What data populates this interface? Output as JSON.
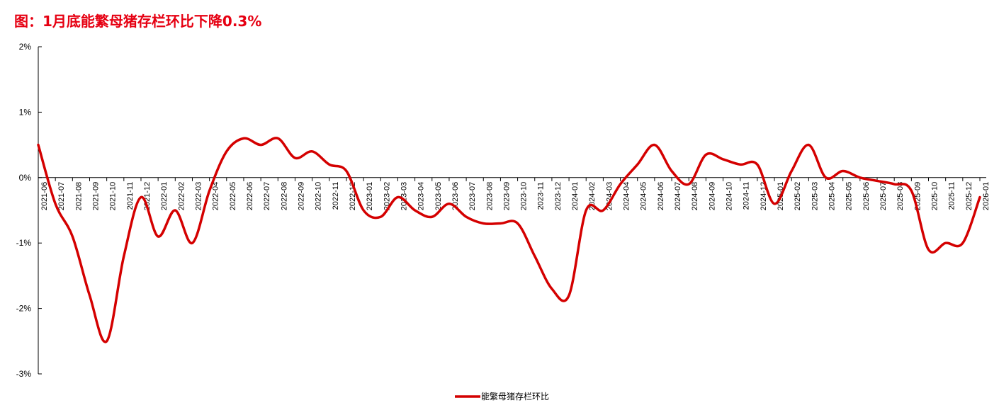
{
  "title": "图：1月底能繁母猪存栏环比下降0.3%",
  "colors": {
    "title": "#e60012",
    "series": "#d40000",
    "axis": "#000000"
  },
  "chart_data": {
    "type": "line",
    "title": "图：1月底能繁母猪存栏环比下降0.3%",
    "xlabel": "",
    "ylabel": "",
    "ylim": [
      -3,
      2
    ],
    "y_ticks": [
      2,
      1,
      0,
      -1,
      -2,
      -3
    ],
    "y_tick_labels": [
      "2%",
      "1%",
      "0%",
      "-1%",
      "-2%",
      "-3%"
    ],
    "grid": false,
    "legend": "bottom-center",
    "categories": [
      "2021-06",
      "2021-07",
      "2021-08",
      "2021-09",
      "2021-10",
      "2021-11",
      "2021-12",
      "2022-01",
      "2022-02",
      "2022-03",
      "2022-04",
      "2022-05",
      "2022-06",
      "2022-07",
      "2022-08",
      "2022-09",
      "2022-10",
      "2022-11",
      "2022-12",
      "2023-01",
      "2023-02",
      "2023-03",
      "2023-04",
      "2023-05",
      "2023-06",
      "2023-07",
      "2023-08",
      "2023-09",
      "2023-10",
      "2023-11",
      "2023-12",
      "2024-01",
      "2024-02",
      "2024-03",
      "2024-04",
      "2024-05",
      "2024-06",
      "2024-07",
      "2024-08",
      "2024-09",
      "2024-10",
      "2024-11",
      "2024-12",
      "2025-01",
      "2025-02",
      "2025-03",
      "2025-04",
      "2025-05",
      "2025-06",
      "2025-07",
      "2025-08",
      "2025-09",
      "2025-10",
      "2025-11",
      "2025-12",
      "2026-01"
    ],
    "series": [
      {
        "name": "能繁母猪存栏环比",
        "values": [
          0.5,
          -0.4,
          -0.9,
          -1.8,
          -2.5,
          -1.2,
          -0.3,
          -0.9,
          -0.5,
          -1.0,
          -0.2,
          0.4,
          0.6,
          0.5,
          0.6,
          0.3,
          0.4,
          0.2,
          0.1,
          -0.5,
          -0.6,
          -0.3,
          -0.5,
          -0.6,
          -0.4,
          -0.6,
          -0.7,
          -0.7,
          -0.7,
          -1.2,
          -1.7,
          -1.8,
          -0.5,
          -0.5,
          -0.1,
          0.2,
          0.5,
          0.1,
          -0.1,
          0.35,
          0.28,
          0.2,
          0.2,
          -0.4,
          0.1,
          0.5,
          0.0,
          0.1,
          0.0,
          -0.05,
          -0.1,
          -0.2,
          -1.1,
          -1.0,
          -1.0,
          -0.3
        ]
      }
    ]
  }
}
